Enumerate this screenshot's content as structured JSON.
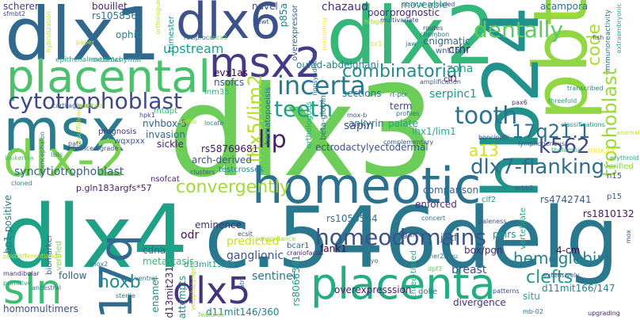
{
  "words": [
    {
      "text": "dlx3",
      "color": "#6cce59"
    },
    {
      "text": "dlx4",
      "color": "#1fa187"
    },
    {
      "text": "c.546delg",
      "color": "#2a788e"
    },
    {
      "text": "dlx1",
      "color": "#31688e"
    },
    {
      "text": "dlx2",
      "color": "#35b779"
    },
    {
      "text": "dlx6",
      "color": "#3b528b"
    },
    {
      "text": "pbt",
      "color": "#90d743"
    },
    {
      "text": "hb24",
      "color": "#21918c"
    },
    {
      "text": "msx",
      "color": "#287c8e"
    },
    {
      "text": "dlx-2",
      "color": "#7ad151"
    },
    {
      "text": "homeotic",
      "color": "#2c718e"
    },
    {
      "text": "placenta",
      "color": "#25ac82"
    },
    {
      "text": "placental",
      "color": "#4ac16d"
    },
    {
      "text": "msx2",
      "color": "#443b84"
    },
    {
      "text": "17q",
      "color": "#2f6b8e"
    },
    {
      "text": "dlx5",
      "color": "#46337e"
    },
    {
      "text": "sln",
      "color": "#3dbc74"
    },
    {
      "text": "cytotrophoblast",
      "color": "#3e4989"
    },
    {
      "text": "incerta",
      "color": "#29798e"
    },
    {
      "text": "teeth",
      "color": "#1f9f88"
    },
    {
      "text": "lhx5/lim2",
      "color": "#b5de2b"
    },
    {
      "text": "lip",
      "color": "#481d6f"
    },
    {
      "text": "tooth",
      "color": "#2d718e"
    },
    {
      "text": "dlx7-flanking",
      "color": "#2e6e8e"
    },
    {
      "text": "17q21.1",
      "color": "#2d708e"
    },
    {
      "text": "trophoblast",
      "color": "#9bd93c"
    },
    {
      "text": "code",
      "color": "#a8db34"
    },
    {
      "text": "combinatorial",
      "color": "#238a8d"
    },
    {
      "text": "dentally",
      "color": "#5ec962"
    },
    {
      "text": "homeodomains",
      "color": "#3b528b"
    },
    {
      "text": "hemoglobin",
      "color": "#26828e"
    },
    {
      "text": "clefts",
      "color": "#1f988b"
    },
    {
      "text": "k562",
      "color": "#3e4a89"
    },
    {
      "text": "convergently",
      "color": "#a2da37"
    },
    {
      "text": "a13",
      "color": "#d2e21b"
    },
    {
      "text": "hoxb",
      "color": "#24878e"
    },
    {
      "text": "evx1as",
      "color": "#440154"
    },
    {
      "text": "nsofcs",
      "color": "#3b528b"
    },
    {
      "text": "upstream",
      "color": "#1e9b8a"
    },
    {
      "text": "ophid",
      "color": "#26828e"
    },
    {
      "text": "bouillet",
      "color": "#482878"
    },
    {
      "text": "rs1058562",
      "color": "#2b748e"
    },
    {
      "text": "scherer",
      "color": "#433e85"
    },
    {
      "text": "sfmbt2",
      "color": "#3e4989"
    },
    {
      "text": "hybridization",
      "color": "#b5de2b"
    },
    {
      "text": "epithelial-mesenchymal",
      "color": "#27ad81"
    },
    {
      "text": "paper",
      "color": "#c2df23"
    },
    {
      "text": "trimester",
      "color": "#228c8d"
    },
    {
      "text": "reciprocal",
      "color": "#2e6f8e"
    },
    {
      "text": "ncx1",
      "color": "#5cc863"
    },
    {
      "text": "hoxb5/6as",
      "color": "#1fa088"
    },
    {
      "text": "lnm35",
      "color": "#2fb47c"
    },
    {
      "text": "mtapt",
      "color": "#34b679"
    },
    {
      "text": "nvhbox-5",
      "color": "#355e8d"
    },
    {
      "text": "invasion",
      "color": "#30698e"
    },
    {
      "text": "sickle",
      "color": "#482173"
    },
    {
      "text": "prognosis",
      "color": "#472d7b"
    },
    {
      "text": "wqxpxx",
      "color": "#38588c"
    },
    {
      "text": "rs58769681",
      "color": "#481668"
    },
    {
      "text": "arch-derived",
      "color": "#3b528b"
    },
    {
      "text": "testcrosses",
      "color": "#25848e"
    },
    {
      "text": "clusters",
      "color": "#3a548c"
    },
    {
      "text": "syncytiotrophoblast",
      "color": "#34608d"
    },
    {
      "text": "nsofcat",
      "color": "#482576"
    },
    {
      "text": "p.gln183argfs*57",
      "color": "#481a6c"
    },
    {
      "text": "biomarker",
      "color": "#31688e"
    },
    {
      "text": "verified",
      "color": "#8fd744"
    },
    {
      "text": "bp1-positive",
      "color": "#2a788e"
    },
    {
      "text": "lsils",
      "color": "#2e6e8e"
    },
    {
      "text": "advanced-grade",
      "color": "#3e4a89"
    },
    {
      "text": "leukemia",
      "color": "#4ac16d"
    },
    {
      "text": "diencephalon",
      "color": "#2c738e"
    },
    {
      "text": "cartilaginous",
      "color": "#32658e"
    },
    {
      "text": "insufficiency",
      "color": "#bddf26"
    },
    {
      "text": "existed",
      "color": "#b5de2b"
    },
    {
      "text": "hpk1",
      "color": "#3f4788"
    },
    {
      "text": "pats",
      "color": "#3b528b"
    },
    {
      "text": "cloned",
      "color": "#20928c"
    },
    {
      "text": "eminence",
      "color": "#472c7a"
    },
    {
      "text": "odr",
      "color": "#470d60"
    },
    {
      "text": "cdna",
      "color": "#31678e"
    },
    {
      "text": "predicted",
      "color": "#c8e020"
    },
    {
      "text": "ganglionic",
      "color": "#3a548c"
    },
    {
      "text": "metastasis",
      "color": "#35b779"
    },
    {
      "text": "follow",
      "color": "#32658e"
    },
    {
      "text": "primitive",
      "color": "#24aa83"
    },
    {
      "text": "ancestral",
      "color": "#2a788e"
    },
    {
      "text": "homomultimers",
      "color": "#3d4d8a"
    },
    {
      "text": "postdifferentiation",
      "color": "#c5e021"
    },
    {
      "text": "mandibular",
      "color": "#46307e"
    },
    {
      "text": "sentinel",
      "color": "#2b758e"
    },
    {
      "text": "d13mit13/54",
      "color": "#1f968b"
    },
    {
      "text": "d13mit231",
      "color": "#481d6f"
    },
    {
      "text": "attempts",
      "color": "#228b8d"
    },
    {
      "text": "enamel",
      "color": "#24868e"
    },
    {
      "text": "sterile",
      "color": "#2a788e"
    },
    {
      "text": "ventral",
      "color": "#2d718e"
    },
    {
      "text": "mox2",
      "color": "#287d8e"
    },
    {
      "text": "d11mit146/360",
      "color": "#26828e"
    },
    {
      "text": "velopharyngeal",
      "color": "#bade28"
    },
    {
      "text": "features",
      "color": "#8bd646"
    },
    {
      "text": "atra",
      "color": "#31688e"
    },
    {
      "text": "ecsit",
      "color": "#3e4989"
    },
    {
      "text": "bcar1",
      "color": "#31688e"
    },
    {
      "text": "fank1",
      "color": "#440154"
    },
    {
      "text": "craniofacial",
      "color": "#482576"
    },
    {
      "text": "concordance",
      "color": "#9dd93b"
    },
    {
      "text": "rs8066341",
      "color": "#1f9e89"
    },
    {
      "text": "rs1058564",
      "color": "#2c728e"
    },
    {
      "text": "overexpresssion",
      "color": "#481d6f"
    },
    {
      "text": "breast",
      "color": "#3b528b"
    },
    {
      "text": "dolle",
      "color": "#2e6e8e"
    },
    {
      "text": "divergence",
      "color": "#46307e"
    },
    {
      "text": "three-tiered",
      "color": "#26ad81"
    },
    {
      "text": "dpf3",
      "color": "#63cb5f"
    },
    {
      "text": "patterns",
      "color": "#3b528b"
    },
    {
      "text": "mb-02",
      "color": "#2d708e"
    },
    {
      "text": "situ",
      "color": "#22a785"
    },
    {
      "text": "extensively",
      "color": "#38588c"
    },
    {
      "text": "upgrading",
      "color": "#481d6f"
    },
    {
      "text": "d11mit166/147",
      "color": "#25858e"
    },
    {
      "text": "4-cm",
      "color": "#440154"
    },
    {
      "text": "vertebrate",
      "color": "#25ab82"
    },
    {
      "text": "mox",
      "color": "#3b528b"
    },
    {
      "text": "pairs",
      "color": "#21918c"
    },
    {
      "text": "rs1810132",
      "color": "#471365"
    },
    {
      "text": "rs4742741",
      "color": "#38588c"
    },
    {
      "text": "clf2",
      "color": "#1f968b"
    },
    {
      "text": "gart",
      "color": "#3b528b"
    },
    {
      "text": "jazf",
      "color": "#35608d"
    },
    {
      "text": "her2/neu",
      "color": "#2c738e"
    },
    {
      "text": "myo",
      "color": "#2a768e"
    },
    {
      "text": "box/pgn",
      "color": "#482878"
    },
    {
      "text": "enforced",
      "color": "#472d7b"
    },
    {
      "text": "comparison",
      "color": "#31668e"
    },
    {
      "text": "paleness",
      "color": "#3d4e8a"
    },
    {
      "text": "concert",
      "color": "#2d708e"
    },
    {
      "text": "erbb2",
      "color": "#38588c"
    },
    {
      "text": "p15",
      "color": "#355f8d"
    },
    {
      "text": "n15",
      "color": "#3b528b"
    },
    {
      "text": "verified",
      "color": "#8fd744"
    },
    {
      "text": "erythroid",
      "color": "#22a884"
    },
    {
      "text": "mox2a",
      "color": "#fde725"
    },
    {
      "text": "thalamus",
      "color": "#37b878"
    },
    {
      "text": "lymphogenous",
      "color": "#3a548c"
    },
    {
      "text": "anomalies",
      "color": "#c0df25"
    },
    {
      "text": "classifications",
      "color": "#1f9a8a"
    },
    {
      "text": "boncinelli",
      "color": "#3e4a89"
    },
    {
      "text": "pax6",
      "color": "#46337e"
    },
    {
      "text": "threefold",
      "color": "#20a386"
    },
    {
      "text": "transcribed",
      "color": "#25848e"
    },
    {
      "text": "immunoreactivity",
      "color": "#2d718e"
    },
    {
      "text": "extraembryonic",
      "color": "#29af7f"
    },
    {
      "text": "fish",
      "color": "#3b528b"
    },
    {
      "text": "lhx1/lim1",
      "color": "#25ac82"
    },
    {
      "text": "ankyrin",
      "color": "#2a788e"
    },
    {
      "text": "complementary",
      "color": "#3b528b"
    },
    {
      "text": "profiles",
      "color": "#2d708e"
    },
    {
      "text": "term",
      "color": "#3e4a89"
    },
    {
      "text": "ectrodactylyectodermal",
      "color": "#3a548c"
    },
    {
      "text": "palate",
      "color": "#20a486"
    },
    {
      "text": "sapin",
      "color": "#3b528b"
    },
    {
      "text": "beta-globin",
      "color": "#31678e"
    },
    {
      "text": "orthologous",
      "color": "#22a785"
    },
    {
      "text": "hematopoeisis",
      "color": "#2e6e8e"
    },
    {
      "text": "mox-b",
      "color": "#3b528b"
    },
    {
      "text": "locate",
      "color": "#24878e"
    },
    {
      "text": "ambo",
      "color": "#c8e020"
    },
    {
      "text": "nonsyndromic",
      "color": "#2c718e"
    },
    {
      "text": "sections",
      "color": "#2b758e"
    },
    {
      "text": "rt-pcr",
      "color": "#31688e"
    },
    {
      "text": "oulad-abdelghani",
      "color": "#26828e"
    },
    {
      "text": "serpinc1",
      "color": "#1f958b"
    },
    {
      "text": "clf1",
      "color": "#440154"
    },
    {
      "text": "zona",
      "color": "#1fa188"
    },
    {
      "text": "amplification",
      "color": "#38588c"
    },
    {
      "text": "crhr",
      "color": "#482475"
    },
    {
      "text": "wnt15",
      "color": "#31688e"
    },
    {
      "text": "enigmatic",
      "color": "#32658e"
    },
    {
      "text": "prognostic",
      "color": "#481d6f"
    },
    {
      "text": "multivariate",
      "color": "#3b528b"
    },
    {
      "text": "poor",
      "color": "#472e7c"
    },
    {
      "text": "chazaud",
      "color": "#46307e"
    },
    {
      "text": "navel",
      "color": "#3b528b"
    },
    {
      "text": "newt",
      "color": "#3b528b"
    },
    {
      "text": "p85a",
      "color": "#26828e"
    },
    {
      "text": "overexpressor",
      "color": "#34608d"
    },
    {
      "text": "noncoding",
      "color": "#fde725"
    },
    {
      "text": "hrbgu",
      "color": "#b5de2b"
    },
    {
      "text": "bc1",
      "color": "#d2e21b"
    },
    {
      "text": "jaw",
      "color": "#2e6e8e"
    },
    {
      "text": "routes",
      "color": "#3e4989"
    },
    {
      "text": "chambon",
      "color": "#2b758e"
    },
    {
      "text": "striatal",
      "color": "#2b748e"
    },
    {
      "text": "encoded",
      "color": "#3e4a89"
    },
    {
      "text": "moveable",
      "color": "#1f9e89"
    },
    {
      "text": "acampora",
      "color": "#2c728e"
    },
    {
      "text": "simeone",
      "color": "#c2df23"
    },
    {
      "text": "orthologue",
      "color": "#c5e021"
    }
  ]
}
